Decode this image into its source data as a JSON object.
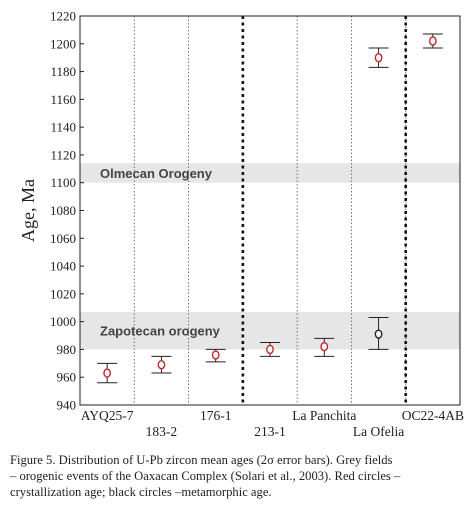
{
  "chart_data": {
    "type": "scatter",
    "ylabel": "Age, Ma",
    "ylim": [
      940,
      1220
    ],
    "yticks": [
      940,
      960,
      980,
      1000,
      1020,
      1040,
      1060,
      1080,
      1100,
      1120,
      1140,
      1160,
      1180,
      1200,
      1220
    ],
    "categories": [
      "AYQ25-7",
      "183-2",
      "176-1",
      "213-1",
      "La Panchita",
      "La Ofelia",
      "OC22-4AB"
    ],
    "category_label_rows": [
      "upper",
      "lower",
      "upper",
      "lower",
      "upper",
      "lower",
      "upper"
    ],
    "points": [
      {
        "category": "AYQ25-7",
        "age": 963,
        "lower": 956,
        "upper": 970,
        "kind": "crystallization"
      },
      {
        "category": "183-2",
        "age": 969,
        "lower": 963,
        "upper": 975,
        "kind": "crystallization"
      },
      {
        "category": "176-1",
        "age": 976,
        "lower": 971,
        "upper": 980,
        "kind": "crystallization"
      },
      {
        "category": "213-1",
        "age": 980,
        "lower": 975,
        "upper": 985,
        "kind": "crystallization"
      },
      {
        "category": "La Panchita",
        "age": 982,
        "lower": 975,
        "upper": 988,
        "kind": "crystallization"
      },
      {
        "category": "La Ofelia",
        "age": 991,
        "lower": 980,
        "upper": 1003,
        "kind": "metamorphic"
      },
      {
        "category": "La Ofelia",
        "age": 1190,
        "lower": 1183,
        "upper": 1197,
        "kind": "crystallization"
      },
      {
        "category": "OC22-4AB",
        "age": 1202,
        "lower": 1197,
        "upper": 1207,
        "kind": "crystallization"
      }
    ],
    "bands": [
      {
        "label": "Olmecan Orogeny",
        "from": 1100,
        "to": 1114
      },
      {
        "label": "Zapotecan orogeny",
        "from": 980,
        "to": 1007
      }
    ],
    "dotted_dividers_after": [
      0,
      1,
      3,
      4,
      5
    ],
    "bold_dividers_after": [
      2,
      5
    ],
    "colors": {
      "crystallization": "#c0282d",
      "metamorphic": "#222222",
      "band": "#e6e6e6",
      "axis": "#222222"
    }
  },
  "caption": {
    "lines": [
      "Figure 5. Distribution of U-Pb zircon mean ages (2σ error bars). Grey fields",
      "– orogenic events of the Oaxacan Complex (Solari et al., 2003). Red circles –",
      "crystallization age; black circles –metamorphic age."
    ]
  }
}
